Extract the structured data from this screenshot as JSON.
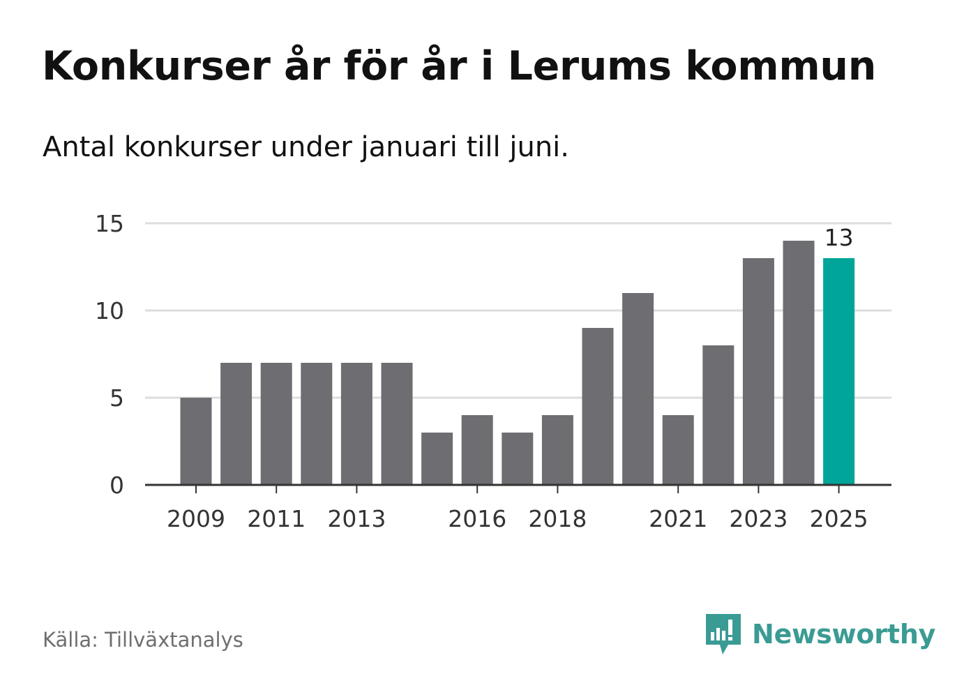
{
  "title": "Konkurser år för år i Lerums kommun",
  "subtitle": "Antal konkurser under januari till juni.",
  "source": "Källa: Tillväxtanalys",
  "brand": {
    "name": "Newsworthy",
    "icon": "newsworthy-logo-icon",
    "color": "#3a9b94"
  },
  "colors": {
    "bar": "#6e6d72",
    "highlight": "#00a599",
    "grid": "#dddddd",
    "axis": "#333333"
  },
  "chart_data": {
    "type": "bar",
    "categories": [
      "2009",
      "2010",
      "2011",
      "2012",
      "2013",
      "2014",
      "2015",
      "2016",
      "2017",
      "2018",
      "2019",
      "2020",
      "2021",
      "2022",
      "2023",
      "2024",
      "2025"
    ],
    "values": [
      5,
      7,
      7,
      7,
      7,
      7,
      3,
      4,
      3,
      4,
      9,
      11,
      4,
      8,
      13,
      14,
      13
    ],
    "x_tick_labels": [
      "2009",
      "2011",
      "2013",
      "2016",
      "2018",
      "2021",
      "2023",
      "2025"
    ],
    "y_ticks": [
      0,
      5,
      10,
      15
    ],
    "ylim": [
      0,
      15
    ],
    "highlight": "2025",
    "highlight_label": "13",
    "grid": true
  }
}
